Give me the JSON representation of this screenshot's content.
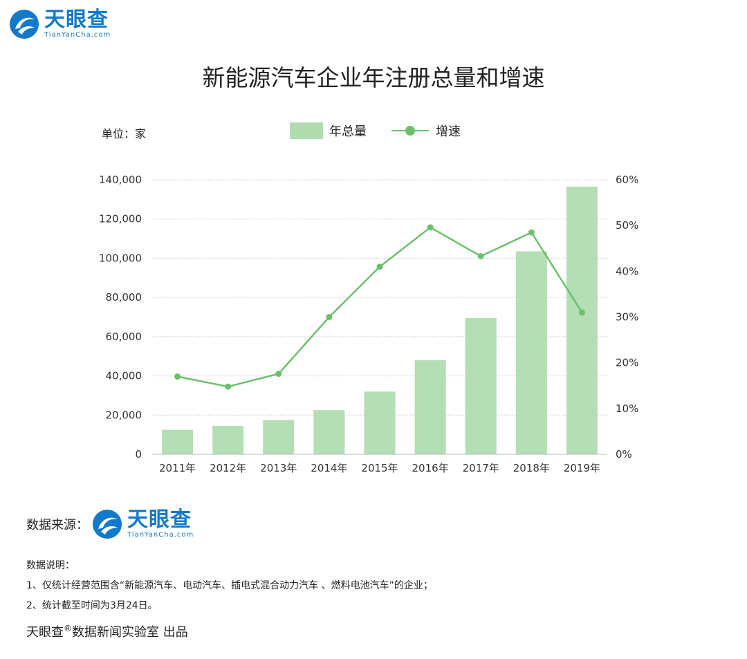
{
  "brand": {
    "name_cn": "天眼查",
    "name_en": "TianYanCha.com",
    "color": "#1479c8"
  },
  "title": "新能源汽车企业年注册总量和增速",
  "unit_label": "单位：家",
  "legend": {
    "bar": "年总量",
    "line": "增速"
  },
  "chart_data": {
    "type": "bar",
    "title": "新能源汽车企业年注册总量和增速",
    "categories": [
      "2011年",
      "2012年",
      "2013年",
      "2014年",
      "2015年",
      "2016年",
      "2017年",
      "2018年",
      "2019年"
    ],
    "series": [
      {
        "name": "年总量",
        "type": "bar",
        "axis": "left",
        "color": "#b0dcb0",
        "values": [
          12500,
          14500,
          17500,
          22500,
          32000,
          48000,
          69500,
          103500,
          136500
        ]
      },
      {
        "name": "增速",
        "type": "line",
        "axis": "right",
        "color": "#6cc06c",
        "values": [
          17.0,
          14.8,
          17.6,
          30.0,
          41.0,
          49.6,
          43.3,
          48.5,
          31.0
        ]
      }
    ],
    "y_left": {
      "ylim": [
        0,
        140000
      ],
      "ticks": [
        "0",
        "20,000",
        "40,000",
        "60,000",
        "80,000",
        "100,000",
        "120,000",
        "140,000"
      ]
    },
    "y_right": {
      "ylim": [
        0,
        60
      ],
      "ticks": [
        "0%",
        "10%",
        "20%",
        "30%",
        "40%",
        "50%",
        "60%"
      ]
    },
    "grid": true,
    "legend_position": "top-center"
  },
  "source": {
    "label": "数据来源："
  },
  "notes": {
    "heading": "数据说明：",
    "line1": "1、仅统计经营范围含“新能源汽车、电动汽车、插电式混合动力汽车 、燃料电池汽车”的企业；",
    "line2": "2、统计截至时间为3月24日。"
  },
  "footer": {
    "brand": "天眼查",
    "reg": "®",
    "text": "数据新闻实验室 出品"
  }
}
